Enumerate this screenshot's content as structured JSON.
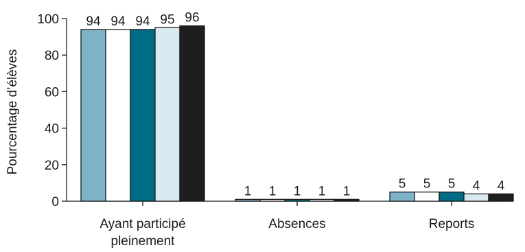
{
  "chart_data": {
    "type": "bar",
    "ylabel": "Pourcentage d’élèves",
    "ylim": [
      0,
      100
    ],
    "yticks": [
      "0",
      "20",
      "40",
      "60",
      "80",
      "100"
    ],
    "categories": [
      [
        "Ayant participé",
        "pleinement"
      ],
      [
        "Absences"
      ],
      [
        "Reports"
      ]
    ],
    "series": [
      {
        "color": "#7fb3c8",
        "values": [
          94,
          1,
          5
        ]
      },
      {
        "color": "#ffffff",
        "values": [
          94,
          1,
          5
        ]
      },
      {
        "color": "#006b84",
        "values": [
          94,
          1,
          5
        ]
      },
      {
        "color": "#d9e9f0",
        "values": [
          95,
          1,
          4
        ]
      },
      {
        "color": "#1e1e1e",
        "values": [
          96,
          1,
          4
        ]
      }
    ],
    "grid": false,
    "legend": "none"
  }
}
